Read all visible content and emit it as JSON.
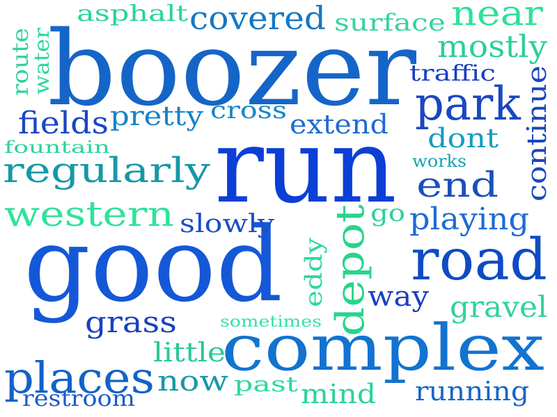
{
  "words": [
    {
      "text": "boozer",
      "color": "#1565c8"
    },
    {
      "text": "run",
      "color": "#0b3fd6"
    },
    {
      "text": "good",
      "color": "#1458d8"
    },
    {
      "text": "complex",
      "color": "#1273d0"
    },
    {
      "text": "road",
      "color": "#0e4cc4"
    },
    {
      "text": "park",
      "color": "#1a47c0"
    },
    {
      "text": "places",
      "color": "#1262c9"
    },
    {
      "text": "regularly",
      "color": "#1798a8"
    },
    {
      "text": "western",
      "color": "#2fe39a"
    },
    {
      "text": "depot",
      "color": "#27d58a"
    },
    {
      "text": "near",
      "color": "#2ee19a"
    },
    {
      "text": "covered",
      "color": "#1577c4"
    },
    {
      "text": "fields",
      "color": "#1846c6"
    },
    {
      "text": "end",
      "color": "#1a50bb"
    },
    {
      "text": "playing",
      "color": "#1d6bd4"
    },
    {
      "text": "mostly",
      "color": "#2ccf96"
    },
    {
      "text": "continue",
      "color": "#1b47bb"
    },
    {
      "text": "gravel",
      "color": "#2fd497"
    },
    {
      "text": "grass",
      "color": "#1a3fc0"
    },
    {
      "text": "pretty",
      "color": "#1782c9"
    },
    {
      "text": "cross",
      "color": "#1687c4"
    },
    {
      "text": "extend",
      "color": "#1f6bd2"
    },
    {
      "text": "surface",
      "color": "#34d4a0"
    },
    {
      "text": "asphalt",
      "color": "#2bd397"
    },
    {
      "text": "dont",
      "color": "#189cc0"
    },
    {
      "text": "slowly",
      "color": "#1c4ec6"
    },
    {
      "text": "now",
      "color": "#1998a8"
    },
    {
      "text": "little",
      "color": "#2bc89a"
    },
    {
      "text": "way",
      "color": "#1a3fc0"
    },
    {
      "text": "running",
      "color": "#1a66c7"
    },
    {
      "text": "restroom",
      "color": "#1f5ac8"
    },
    {
      "text": "mind",
      "color": "#2bd397"
    },
    {
      "text": "past",
      "color": "#2bd8a0"
    },
    {
      "text": "traffic",
      "color": "#1a3fc0"
    },
    {
      "text": "route",
      "color": "#2fd49a"
    },
    {
      "text": "water",
      "color": "#2bd8a0"
    },
    {
      "text": "fountain",
      "color": "#2bd397"
    },
    {
      "text": "eddy",
      "color": "#2bd8a0"
    },
    {
      "text": "go",
      "color": "#2bd397"
    },
    {
      "text": "works",
      "color": "#1aa0b0"
    },
    {
      "text": "sometimes",
      "color": "#34e0a8"
    }
  ]
}
